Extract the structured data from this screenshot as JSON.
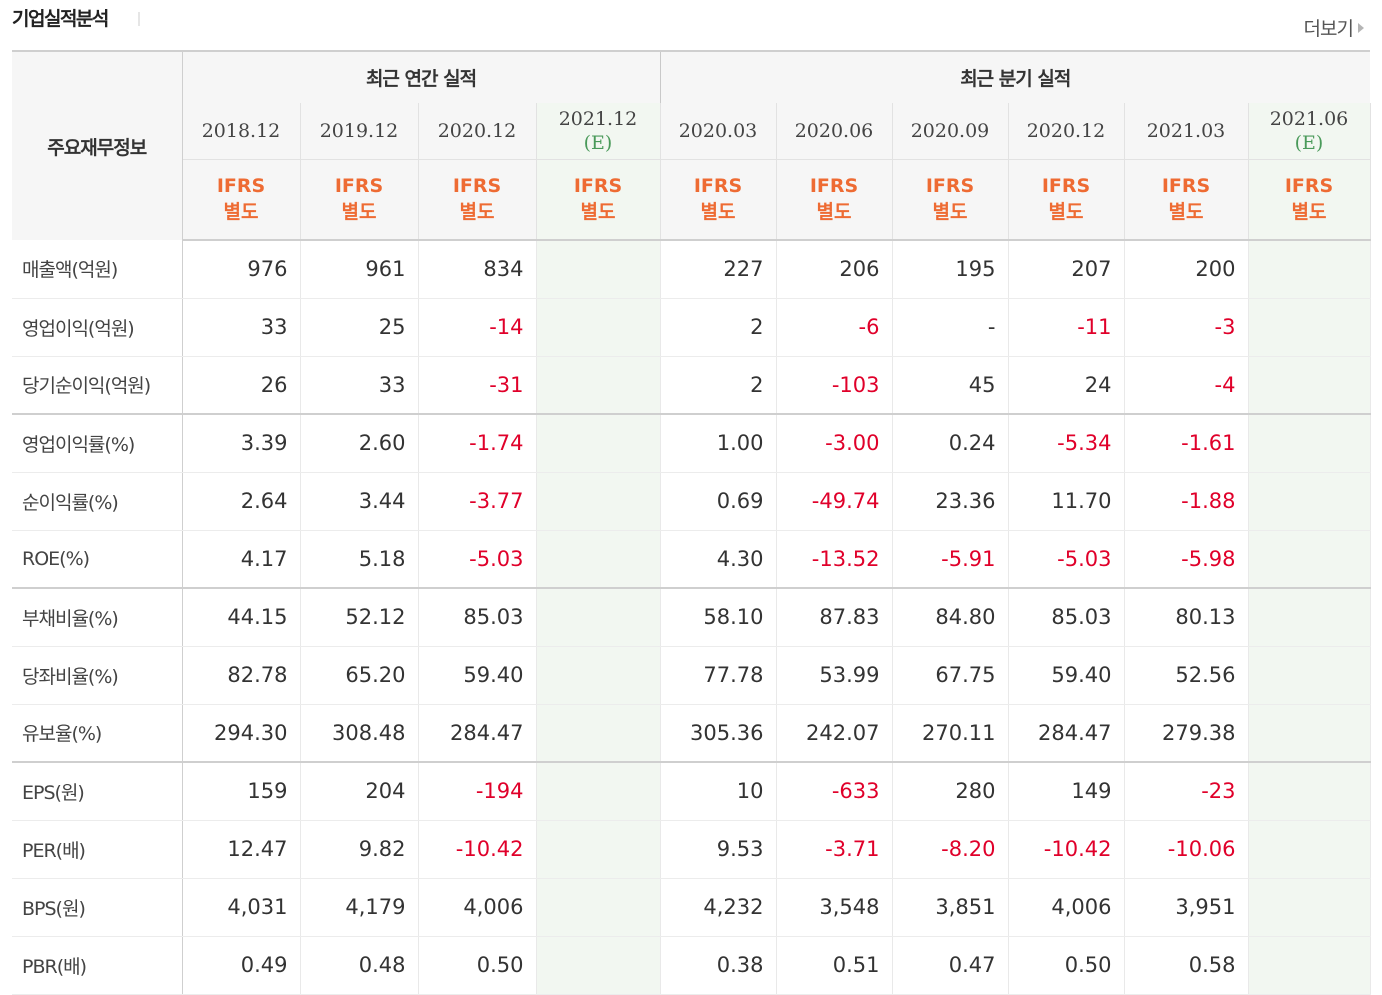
{
  "title": "기업실적분석",
  "more_label": "더보기",
  "header": {
    "main": "주요재무정보",
    "annual": "최근 연간 실적",
    "quarterly": "최근 분기 실적",
    "periods": [
      {
        "label": "2018.12",
        "est": ""
      },
      {
        "label": "2019.12",
        "est": ""
      },
      {
        "label": "2020.12",
        "est": ""
      },
      {
        "label": "2021.12",
        "est": "(E)"
      },
      {
        "label": "2020.03",
        "est": ""
      },
      {
        "label": "2020.06",
        "est": ""
      },
      {
        "label": "2020.09",
        "est": ""
      },
      {
        "label": "2020.12",
        "est": ""
      },
      {
        "label": "2021.03",
        "est": ""
      },
      {
        "label": "2021.06",
        "est": "(E)"
      }
    ],
    "standard_line1": "IFRS",
    "standard_line2": "별도"
  },
  "rows": [
    {
      "label": "매출액(억원)",
      "values": [
        "976",
        "961",
        "834",
        "",
        "227",
        "206",
        "195",
        "207",
        "200",
        ""
      ]
    },
    {
      "label": "영업이익(억원)",
      "values": [
        "33",
        "25",
        "-14",
        "",
        "2",
        "-6",
        "-",
        "-11",
        "-3",
        ""
      ]
    },
    {
      "label": "당기순이익(억원)",
      "values": [
        "26",
        "33",
        "-31",
        "",
        "2",
        "-103",
        "45",
        "24",
        "-4",
        ""
      ]
    },
    {
      "label": "영업이익률(%)",
      "values": [
        "3.39",
        "2.60",
        "-1.74",
        "",
        "1.00",
        "-3.00",
        "0.24",
        "-5.34",
        "-1.61",
        ""
      ]
    },
    {
      "label": "순이익률(%)",
      "values": [
        "2.64",
        "3.44",
        "-3.77",
        "",
        "0.69",
        "-49.74",
        "23.36",
        "11.70",
        "-1.88",
        ""
      ]
    },
    {
      "label": "ROE(%)",
      "values": [
        "4.17",
        "5.18",
        "-5.03",
        "",
        "4.30",
        "-13.52",
        "-5.91",
        "-5.03",
        "-5.98",
        ""
      ]
    },
    {
      "label": "부채비율(%)",
      "values": [
        "44.15",
        "52.12",
        "85.03",
        "",
        "58.10",
        "87.83",
        "84.80",
        "85.03",
        "80.13",
        ""
      ]
    },
    {
      "label": "당좌비율(%)",
      "values": [
        "82.78",
        "65.20",
        "59.40",
        "",
        "77.78",
        "53.99",
        "67.75",
        "59.40",
        "52.56",
        ""
      ]
    },
    {
      "label": "유보율(%)",
      "values": [
        "294.30",
        "308.48",
        "284.47",
        "",
        "305.36",
        "242.07",
        "270.11",
        "284.47",
        "279.38",
        ""
      ]
    },
    {
      "label": "EPS(원)",
      "values": [
        "159",
        "204",
        "-194",
        "",
        "10",
        "-633",
        "280",
        "149",
        "-23",
        ""
      ]
    },
    {
      "label": "PER(배)",
      "values": [
        "12.47",
        "9.82",
        "-10.42",
        "",
        "9.53",
        "-3.71",
        "-8.20",
        "-10.42",
        "-10.06",
        ""
      ]
    },
    {
      "label": "BPS(원)",
      "values": [
        "4,031",
        "4,179",
        "4,006",
        "",
        "4,232",
        "3,548",
        "3,851",
        "4,006",
        "3,951",
        ""
      ]
    },
    {
      "label": "PBR(배)",
      "values": [
        "0.49",
        "0.48",
        "0.50",
        "",
        "0.38",
        "0.51",
        "0.47",
        "0.50",
        "0.58",
        ""
      ]
    }
  ],
  "colors": {
    "negative": "#e0002a",
    "standard": "#ee6b33",
    "estimate": "#4a9a5a",
    "estimate_bg": "#f2f7f1"
  }
}
